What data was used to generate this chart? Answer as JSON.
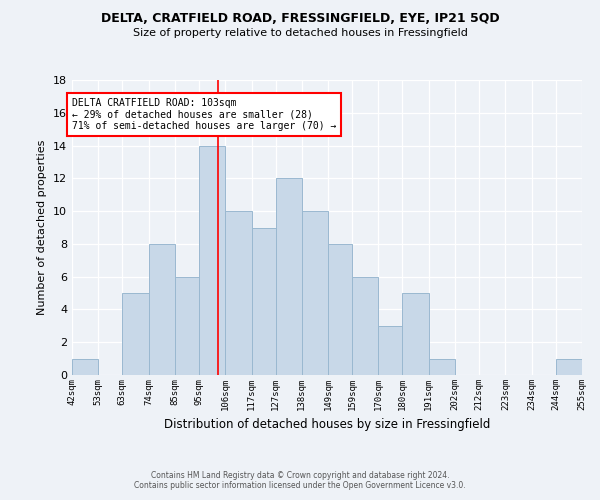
{
  "title": "DELTA, CRATFIELD ROAD, FRESSINGFIELD, EYE, IP21 5QD",
  "subtitle": "Size of property relative to detached houses in Fressingfield",
  "xlabel": "Distribution of detached houses by size in Fressingfield",
  "ylabel": "Number of detached properties",
  "bin_labels": [
    "42sqm",
    "53sqm",
    "63sqm",
    "74sqm",
    "85sqm",
    "95sqm",
    "106sqm",
    "117sqm",
    "127sqm",
    "138sqm",
    "149sqm",
    "159sqm",
    "170sqm",
    "180sqm",
    "191sqm",
    "202sqm",
    "212sqm",
    "223sqm",
    "234sqm",
    "244sqm",
    "255sqm"
  ],
  "bar_values": [
    1,
    0,
    5,
    8,
    6,
    14,
    10,
    9,
    12,
    10,
    8,
    6,
    3,
    5,
    1,
    0,
    0,
    0,
    0,
    1
  ],
  "bar_color": "#c8d8e8",
  "bar_edge_color": "#9ab8d0",
  "red_line_x": 103,
  "bin_edges": [
    42,
    53,
    63,
    74,
    85,
    95,
    106,
    117,
    127,
    138,
    149,
    159,
    170,
    180,
    191,
    202,
    212,
    223,
    234,
    244,
    255
  ],
  "ylim": [
    0,
    18
  ],
  "yticks": [
    0,
    2,
    4,
    6,
    8,
    10,
    12,
    14,
    16,
    18
  ],
  "annotation_title": "DELTA CRATFIELD ROAD: 103sqm",
  "annotation_line1": "← 29% of detached houses are smaller (28)",
  "annotation_line2": "71% of semi-detached houses are larger (70) →",
  "footer_line1": "Contains HM Land Registry data © Crown copyright and database right 2024.",
  "footer_line2": "Contains public sector information licensed under the Open Government Licence v3.0.",
  "background_color": "#eef2f7",
  "plot_bg_color": "#eef2f7"
}
